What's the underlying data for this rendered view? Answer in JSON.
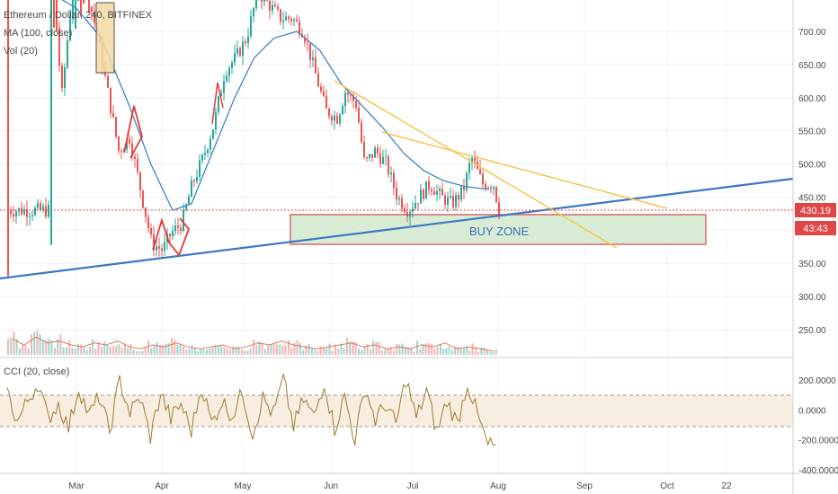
{
  "header": {
    "symbol_line": "Ethereum / Dollar, 240, BITFINEX",
    "ma_line": "MA (100, close)",
    "vol_line": "Vol (20)"
  },
  "cci_header": "CCI (20, close)",
  "price_tags": {
    "last_price": "430.19",
    "countdown": "43:43"
  },
  "annotation": "BUY ZONE",
  "colors": {
    "up": "#26a69a",
    "down": "#ef5350",
    "ma": "#3d86c6",
    "trendline_blue": "#3b78c4",
    "trendline_yellow": "#f6c453",
    "buy_zone_fill": "#d8ecd5",
    "buy_zone_border": "#d46a6a",
    "cci_line": "#a07a2c",
    "price_tag": "#e04646"
  },
  "chart_data": [
    {
      "type": "line",
      "title": "Ethereum / Dollar, 240, BITFINEX",
      "x_ticks": [
        "Mar",
        "Apr",
        "May",
        "Jun",
        "Jul",
        "Aug",
        "Sep",
        "Oct",
        "22"
      ],
      "y_ticks": [
        "250.00",
        "300.00",
        "350.00",
        "400.00",
        "450.00",
        "500.00",
        "550.00",
        "600.00",
        "650.00",
        "700.00"
      ],
      "ylim": [
        200,
        740
      ],
      "series": [
        {
          "name": "MA (100, close)",
          "points": [
            [
              "Feb 20",
              760
            ],
            [
              "Mar 1",
              735
            ],
            [
              "Mar 10",
              690
            ],
            [
              "Mar 20",
              590
            ],
            [
              "Mar 28",
              500
            ],
            [
              "Apr 5",
              430
            ],
            [
              "Apr 12",
              440
            ],
            [
              "Apr 20",
              520
            ],
            [
              "Apr 28",
              600
            ],
            [
              "May 5",
              660
            ],
            [
              "May 12",
              690
            ],
            [
              "May 20",
              700
            ],
            [
              "May 28",
              672
            ],
            [
              "Jun 5",
              620
            ],
            [
              "Jun 12",
              590
            ],
            [
              "Jun 20",
              555
            ],
            [
              "Jun 28",
              515
            ],
            [
              "Jul 5",
              490
            ],
            [
              "Jul 12",
              475
            ],
            [
              "Jul 20",
              466
            ],
            [
              "Jul 28",
              462
            ]
          ]
        },
        {
          "name": "Price (approx. closes)",
          "points": [
            [
              "Feb 20",
              860
            ],
            [
              "Feb 24",
              600
            ],
            [
              "Mar 1",
              840
            ],
            [
              "Mar 4",
              770
            ],
            [
              "Mar 8",
              700
            ],
            [
              "Mar 12",
              610
            ],
            [
              "Mar 16",
              520
            ],
            [
              "Mar 20",
              540
            ],
            [
              "Mar 24",
              460
            ],
            [
              "Mar 28",
              380
            ],
            [
              "Apr 1",
              370
            ],
            [
              "Apr 4",
              395
            ],
            [
              "Apr 8",
              410
            ],
            [
              "Apr 12",
              470
            ],
            [
              "Apr 16",
              510
            ],
            [
              "Apr 20",
              560
            ],
            [
              "Apr 24",
              640
            ],
            [
              "Apr 28",
              660
            ],
            [
              "May 2",
              690
            ],
            [
              "May 6",
              760
            ],
            [
              "May 10",
              740
            ],
            [
              "May 14",
              720
            ],
            [
              "May 18",
              720
            ],
            [
              "May 22",
              700
            ],
            [
              "May 26",
              640
            ],
            [
              "May 30",
              580
            ],
            [
              "Jun 3",
              570
            ],
            [
              "Jun 6",
              610
            ],
            [
              "Jun 10",
              590
            ],
            [
              "Jun 13",
              500
            ],
            [
              "Jun 17",
              520
            ],
            [
              "Jun 21",
              500
            ],
            [
              "Jun 25",
              450
            ],
            [
              "Jun 29",
              430
            ],
            [
              "Jul 3",
              450
            ],
            [
              "Jul 7",
              470
            ],
            [
              "Jul 11",
              450
            ],
            [
              "Jul 15",
              440
            ],
            [
              "Jul 19",
              460
            ],
            [
              "Jul 22",
              510
            ],
            [
              "Jul 26",
              470
            ],
            [
              "Jul 30",
              470
            ],
            [
              "Aug 1",
              430
            ]
          ]
        },
        {
          "name": "Blue trendline",
          "points": [
            [
              "Feb 1",
              327
            ],
            [
              "Nov 8",
              478
            ]
          ]
        },
        {
          "name": "Yellow trendline 1",
          "points": [
            [
              "Jun 3",
              630
            ],
            [
              "Sep 12",
              372
            ]
          ]
        },
        {
          "name": "Yellow trendline 2",
          "points": [
            [
              "Jun 20",
              550
            ],
            [
              "Sep 30",
              432
            ]
          ]
        }
      ],
      "annotations": [
        {
          "text": "BUY ZONE",
          "x_range": [
            "May 20",
            "Oct 15"
          ],
          "y_range": [
            378,
            422
          ]
        }
      ],
      "volume": {
        "name": "Vol (20)",
        "values": [
          8,
          5,
          9,
          6,
          7,
          5,
          4,
          6,
          5,
          7,
          4,
          3,
          5,
          4,
          6,
          4,
          3,
          4,
          5,
          3,
          4,
          6,
          5,
          7,
          5,
          4,
          3,
          4,
          5,
          6,
          4,
          5,
          3,
          4,
          3,
          5,
          4,
          6,
          3,
          4,
          3,
          2
        ]
      }
    },
    {
      "type": "line",
      "title": "CCI (20, close)",
      "y_ticks": [
        "200.0000",
        "0.0000",
        "-200.0000",
        "-400.0000"
      ],
      "ylim": [
        -420,
        290
      ],
      "bands": [
        100,
        -100
      ],
      "series": [
        {
          "name": "CCI (20, close)",
          "values": [
            120,
            -80,
            60,
            180,
            -60,
            40,
            -120,
            150,
            -40,
            90,
            -150,
            200,
            -20,
            80,
            -180,
            110,
            -60,
            40,
            -140,
            160,
            -90,
            60,
            -40,
            120,
            -160,
            80,
            -30,
            200,
            -110,
            70,
            -50,
            190,
            -130,
            90,
            -200,
            150,
            -70,
            40,
            -100,
            210,
            -60,
            130,
            -150,
            60,
            -90,
            180,
            -40,
            -240
          ]
        }
      ]
    }
  ]
}
